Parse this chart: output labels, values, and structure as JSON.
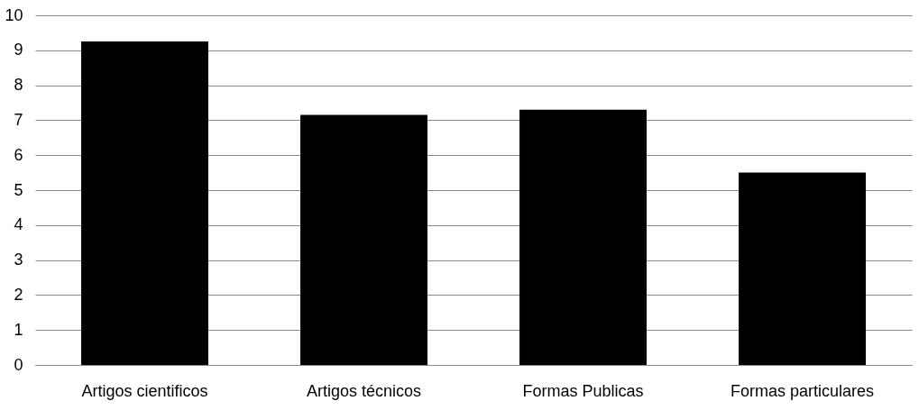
{
  "chart_data": {
    "type": "bar",
    "categories": [
      "Artigos cientificos",
      "Artigos técnicos",
      "Formas Publicas",
      "Formas particulares"
    ],
    "values": [
      9.25,
      7.15,
      7.3,
      5.5
    ],
    "color": "#000000",
    "ylim": [
      0,
      10
    ],
    "yticks": [
      0,
      1,
      2,
      3,
      4,
      5,
      6,
      7,
      8,
      9,
      10
    ],
    "grid": "y"
  }
}
